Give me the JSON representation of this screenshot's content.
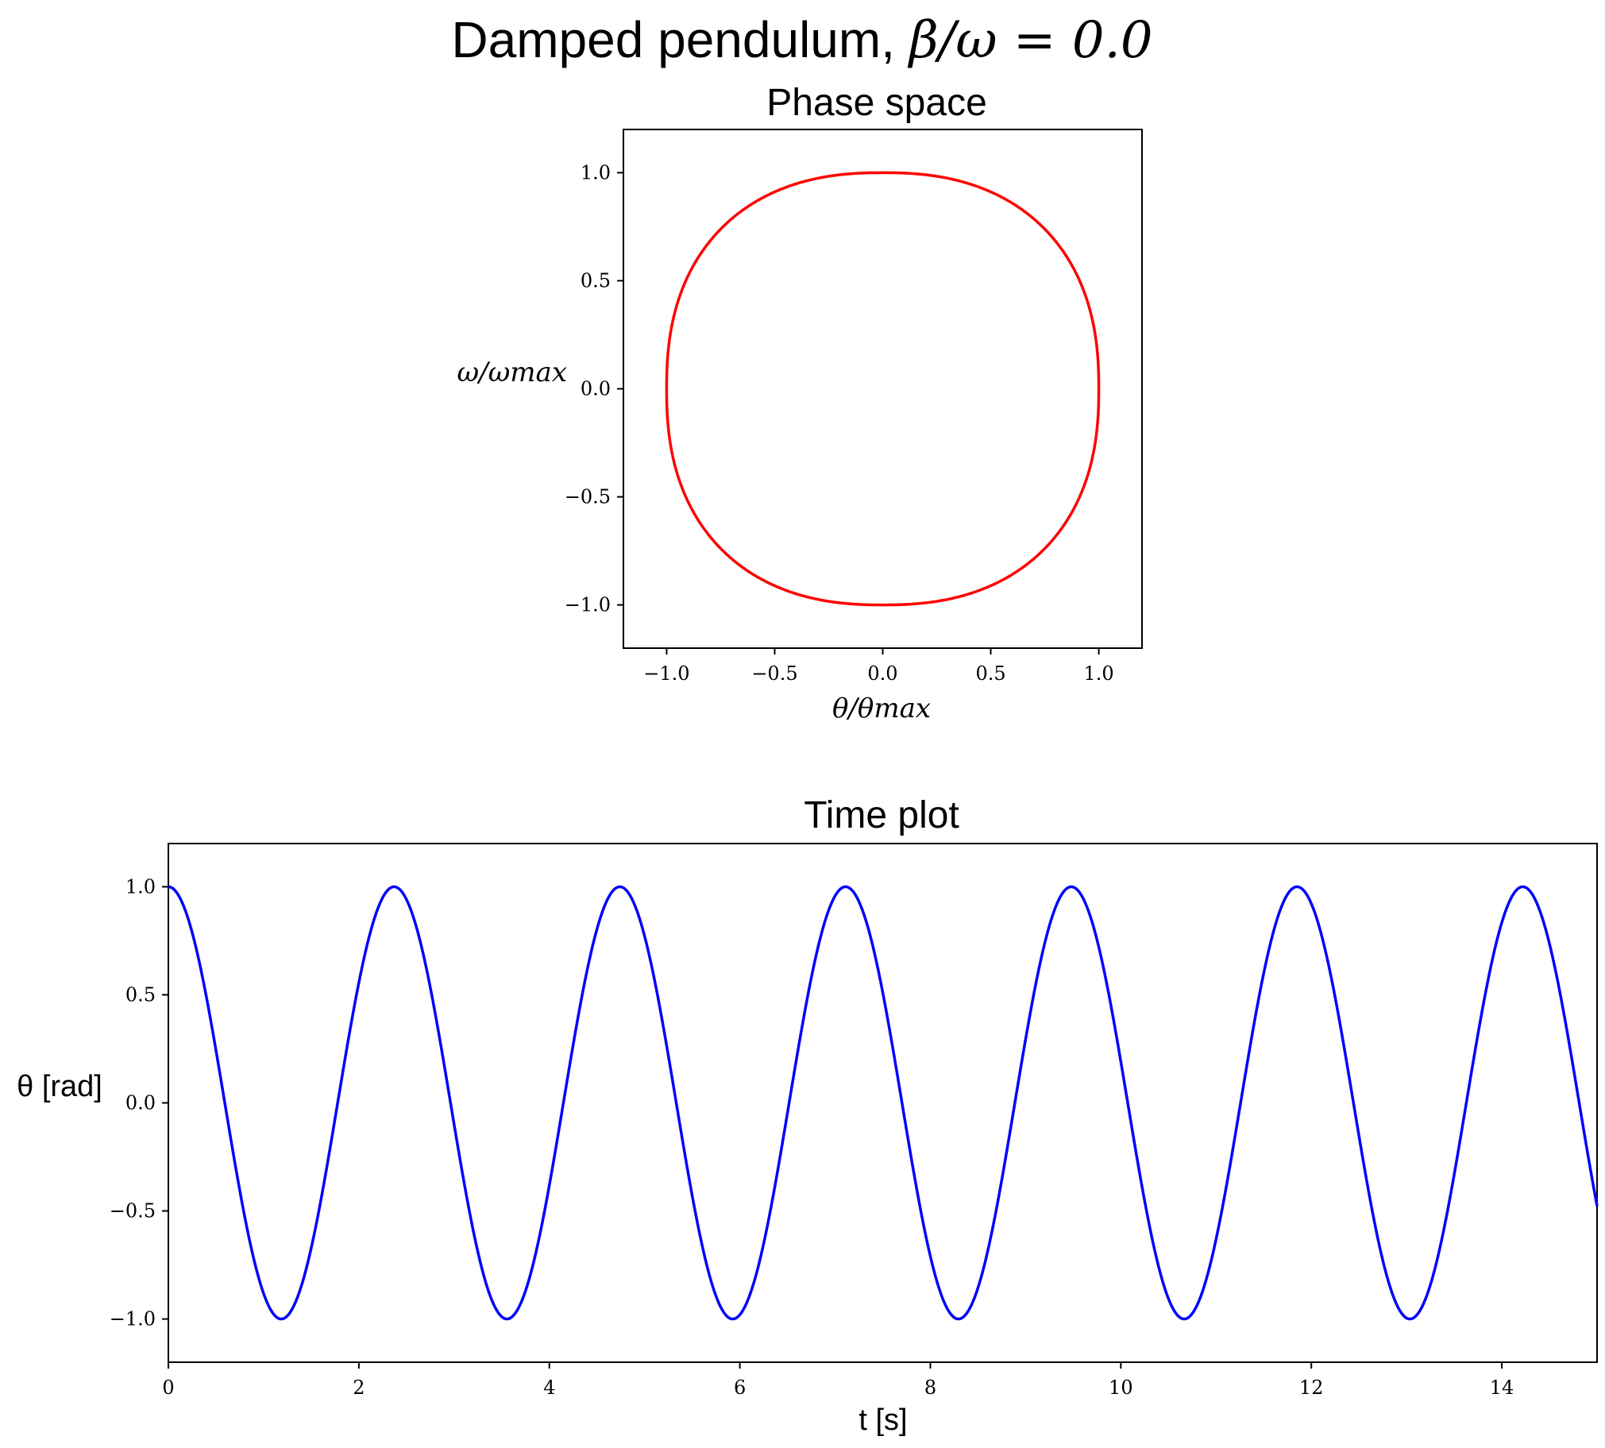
{
  "figure": {
    "suptitle": "Damped pendulum, β/ω̄ = 0.0",
    "suptitle_prefix": "Damped pendulum, ",
    "suptitle_math": "β/ω = 0.0"
  },
  "chart_data": [
    {
      "type": "line",
      "title": "Phase space",
      "xlabel": "θ/θmax",
      "ylabel": "ω/ωmax",
      "xlim": [
        -1.2,
        1.2
      ],
      "ylim": [
        -1.2,
        1.2
      ],
      "xticks": [
        -1.0,
        -0.5,
        0.0,
        0.5,
        1.0
      ],
      "yticks": [
        -1.0,
        -0.5,
        0.0,
        0.5,
        1.0
      ],
      "xtick_labels": [
        "−1.0",
        "−0.5",
        "0.0",
        "0.5",
        "1.0"
      ],
      "ytick_labels": [
        "−1.0",
        "−0.5",
        "0.0",
        "0.5",
        "1.0"
      ],
      "grid": false,
      "legend": "none",
      "series": [
        {
          "color": "#ff0000",
          "description": "closed orbit: theta/theta_max = cos(phase), omega/omega_max = -sin(phase) (slightly squared outline)",
          "x": [
            1.0,
            0.98,
            0.92,
            0.82,
            0.68,
            0.5,
            0.29,
            0.06,
            -0.18,
            -0.4,
            -0.6,
            -0.76,
            -0.88,
            -0.96,
            -1.0,
            -0.98,
            -0.92,
            -0.82,
            -0.68,
            -0.5,
            -0.29,
            -0.06,
            0.18,
            0.4,
            0.6,
            0.76,
            0.88,
            0.96,
            1.0
          ],
          "y": [
            0.0,
            -0.28,
            -0.5,
            -0.68,
            -0.81,
            -0.91,
            -0.97,
            -1.0,
            -0.98,
            -0.93,
            -0.84,
            -0.71,
            -0.53,
            -0.3,
            0.0,
            0.28,
            0.5,
            0.68,
            0.81,
            0.91,
            0.97,
            1.0,
            0.98,
            0.93,
            0.84,
            0.71,
            0.53,
            0.3,
            0.0
          ]
        }
      ]
    },
    {
      "type": "line",
      "title": "Time plot",
      "xlabel": "t [s]",
      "ylabel": "θ [rad]",
      "xlim": [
        0,
        15
      ],
      "ylim": [
        -1.2,
        1.2
      ],
      "xticks": [
        0,
        2,
        4,
        6,
        8,
        10,
        12,
        14
      ],
      "yticks": [
        -1.0,
        -0.5,
        0.0,
        0.5,
        1.0
      ],
      "xtick_labels": [
        "0",
        "2",
        "4",
        "6",
        "8",
        "10",
        "12",
        "14"
      ],
      "ytick_labels": [
        "−1.0",
        "−0.5",
        "0.0",
        "0.5",
        "1.0"
      ],
      "grid": false,
      "legend": "none",
      "series": [
        {
          "color": "#0000ff",
          "amplitude": 1.0,
          "period": 2.37,
          "x": [
            0,
            1.185,
            2.37,
            3.555,
            4.74,
            5.925,
            7.11,
            8.295,
            9.48,
            10.665,
            11.85,
            13.035,
            14.22,
            15.0
          ],
          "y": [
            1.0,
            -1.0,
            1.0,
            -1.0,
            1.0,
            -1.0,
            1.0,
            -1.0,
            1.0,
            -1.0,
            1.0,
            -1.0,
            1.0,
            -0.48
          ]
        }
      ]
    }
  ]
}
